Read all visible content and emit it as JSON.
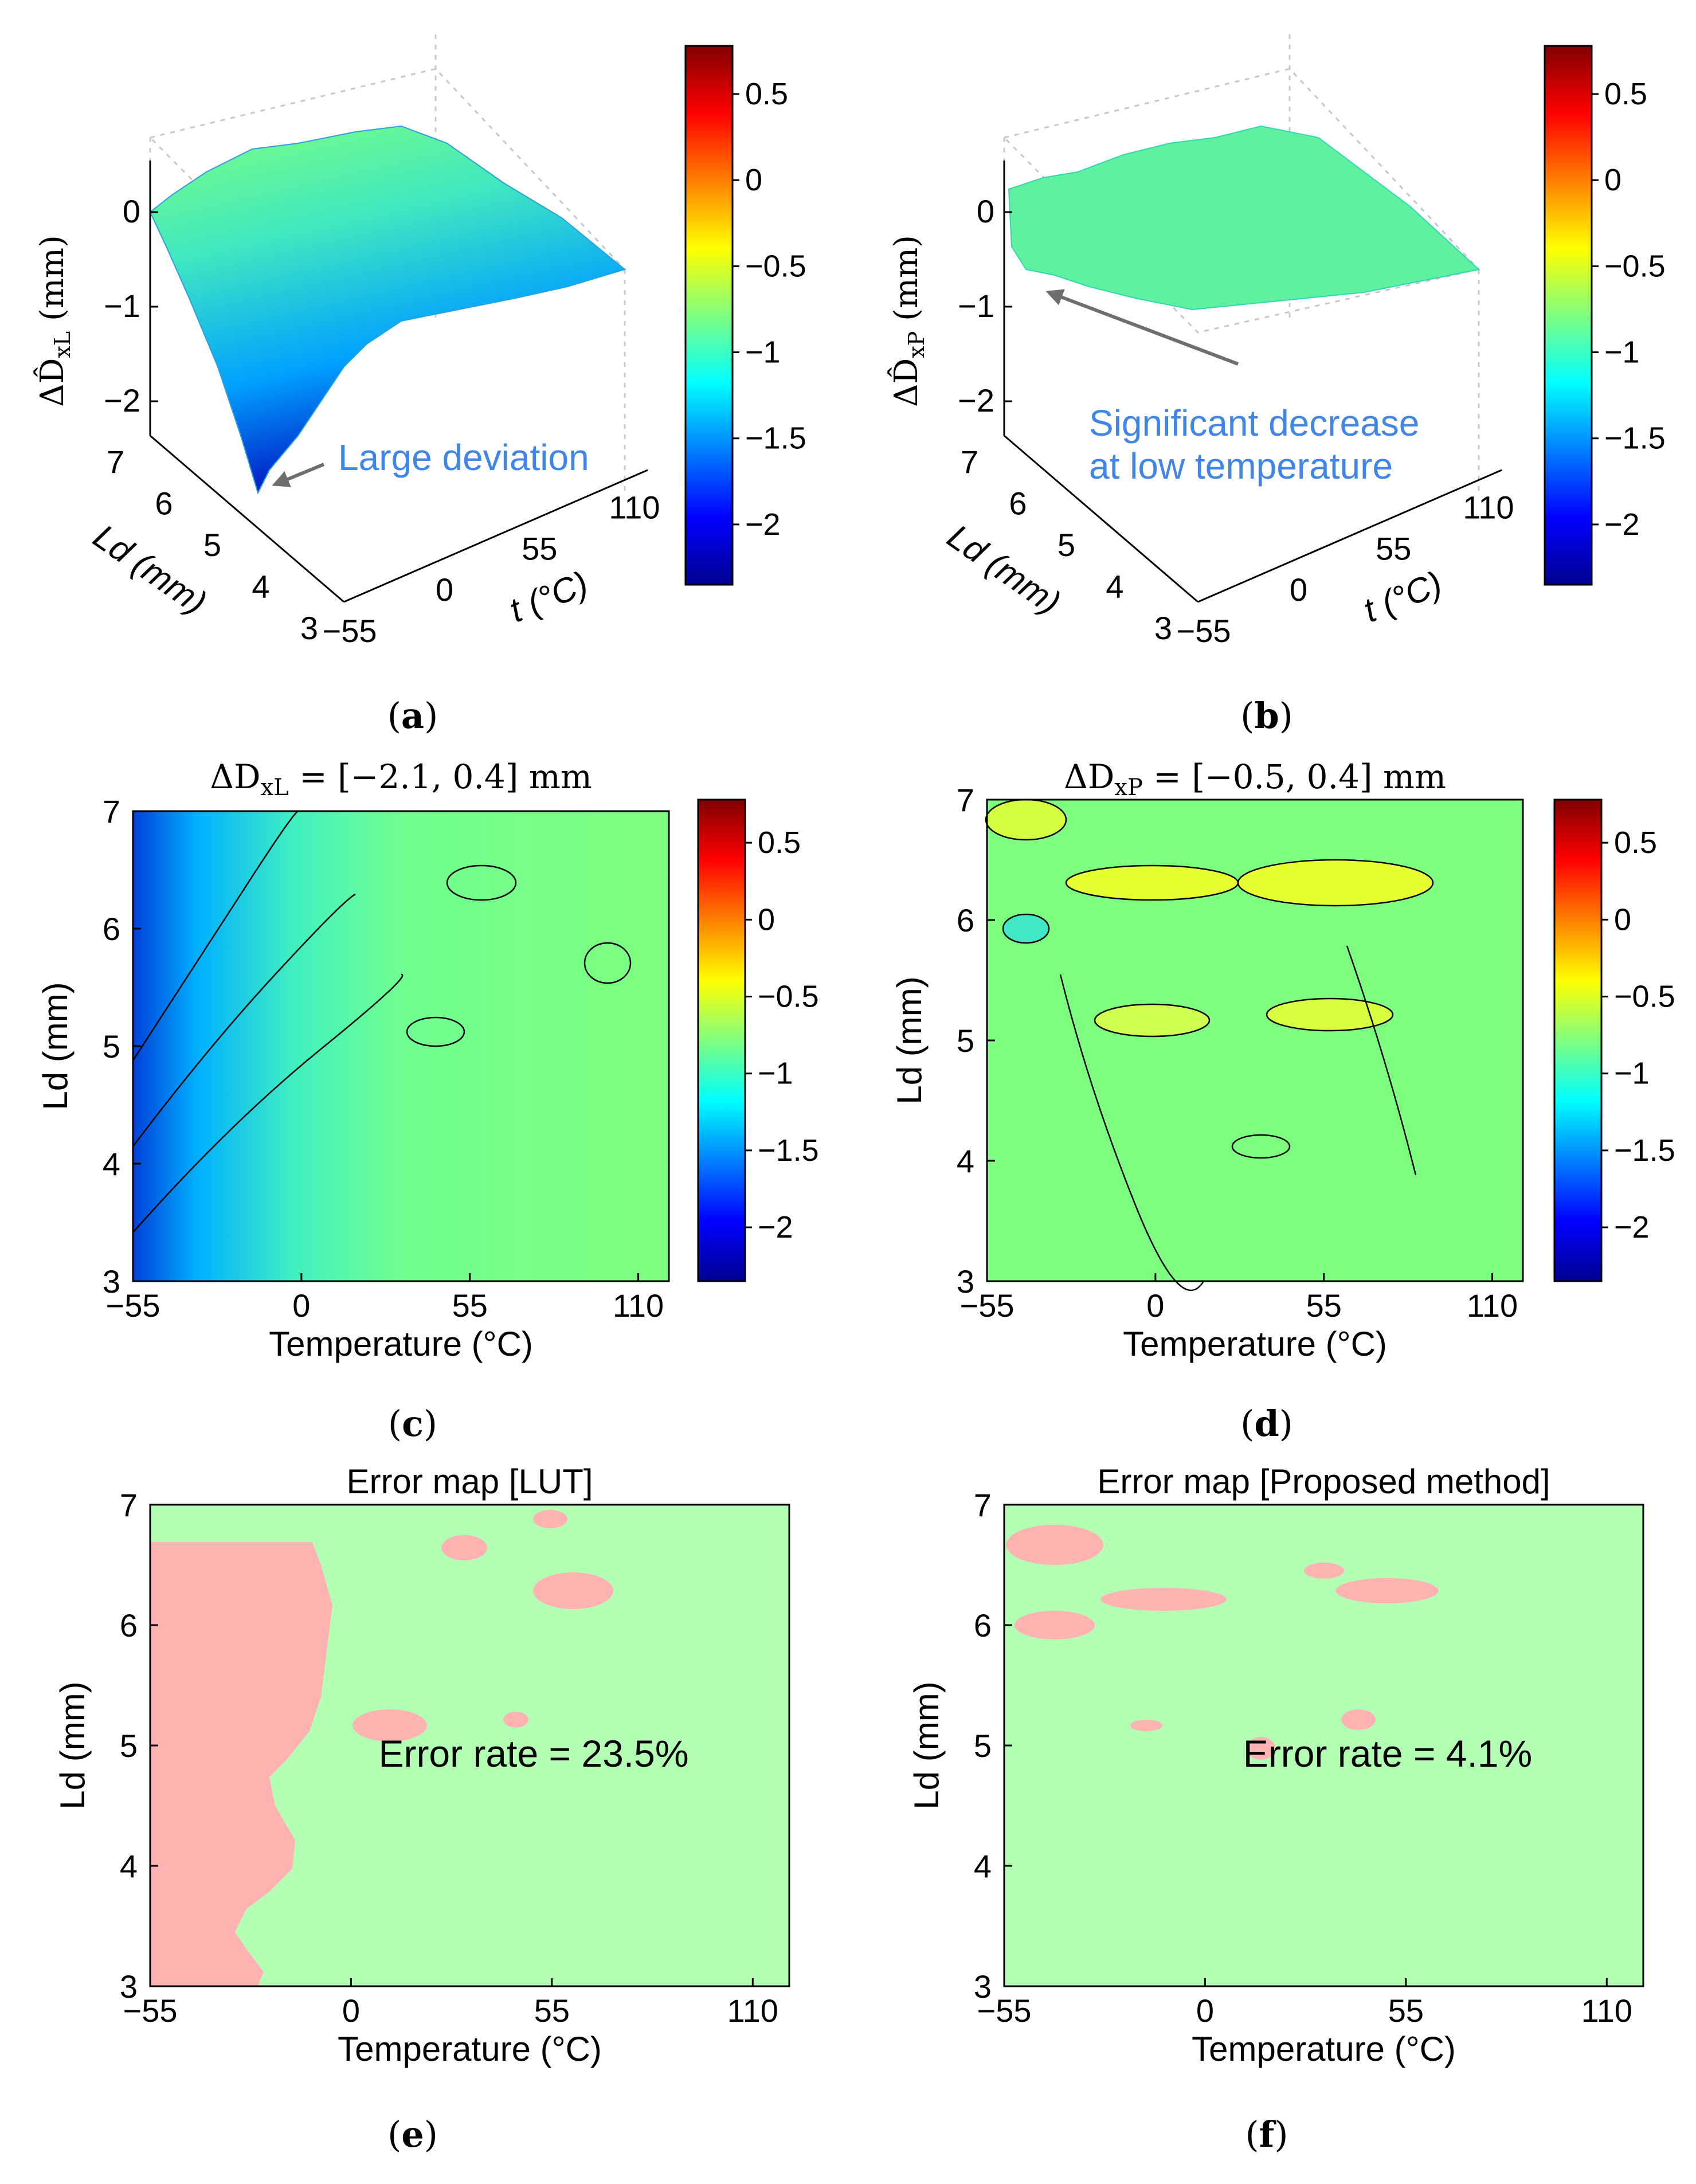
{
  "figure": {
    "colors": {
      "background": "#ffffff",
      "annotation_text": "#3f86e8",
      "arrow": "#6e6e6e",
      "error_fill": "#ffb3b3",
      "correct_fill": "#b3ffb3",
      "contour_line": "#000000"
    },
    "colorbar": {
      "ticks": [
        "0.5",
        "0",
        "−0.5",
        "−1",
        "−1.5",
        "−2"
      ],
      "tick_values": [
        0.5,
        0,
        -0.5,
        -1,
        -1.5,
        -2
      ],
      "range": [
        -2.35,
        0.78
      ],
      "colormap": "jet"
    }
  },
  "chart_data": [
    {
      "panel": "a",
      "caption": "(a)",
      "type": "surface3d",
      "zlabel": "ΔD̂xL (mm)",
      "zlabel_main": "ΔD̂",
      "zlabel_sub": "xL",
      "zlabel_unit": "(mm)",
      "ylabel": "Ld (mm)",
      "xlabel": "t (°C)",
      "x_ticks": [
        "−55",
        "0",
        "55",
        "110"
      ],
      "y_ticks": [
        "3",
        "4",
        "5",
        "6",
        "7"
      ],
      "z_ticks": [
        "0",
        "−1",
        "−2"
      ],
      "xlim": [
        -55,
        120
      ],
      "ylim": [
        3,
        7
      ],
      "zlim": [
        -2.35,
        0.78
      ],
      "annotation": "Large deviation"
    },
    {
      "panel": "b",
      "caption": "(b)",
      "type": "surface3d",
      "zlabel": "ΔD̂xP (mm)",
      "zlabel_main": "ΔD̂",
      "zlabel_sub": "xP",
      "zlabel_unit": "(mm)",
      "ylabel": "Ld (mm)",
      "xlabel": "t (°C)",
      "x_ticks": [
        "−55",
        "0",
        "55",
        "110"
      ],
      "y_ticks": [
        "3",
        "4",
        "5",
        "6",
        "7"
      ],
      "z_ticks": [
        "0",
        "−1",
        "−2"
      ],
      "xlim": [
        -55,
        120
      ],
      "ylim": [
        3,
        7
      ],
      "zlim": [
        -2.35,
        0.78
      ],
      "annotation_line1": "Significant decrease",
      "annotation_line2": "at low temperature"
    },
    {
      "panel": "c",
      "caption": "(c)",
      "type": "heatmap",
      "title": "ΔDxL = [−2.1, 0.4] mm",
      "title_main": "ΔD",
      "title_sub": "xL",
      "title_range": "= [−2.1, 0.4] mm",
      "range_values": [
        -2.1,
        0.4
      ],
      "xlabel": "Temperature (°C)",
      "ylabel": "Ld (mm)",
      "x_ticks": [
        "−55",
        "0",
        "55",
        "110"
      ],
      "x_tick_values": [
        -55,
        0,
        55,
        110
      ],
      "y_ticks": [
        "3",
        "4",
        "5",
        "6",
        "7"
      ],
      "y_tick_values": [
        3,
        4,
        5,
        6,
        7
      ],
      "xlim": [
        -55,
        120
      ],
      "ylim": [
        3,
        7
      ]
    },
    {
      "panel": "d",
      "caption": "(d)",
      "type": "heatmap",
      "title": "ΔDxP = [−0.5, 0.4] mm",
      "title_main": "ΔD",
      "title_sub": "xP",
      "title_range": "= [−0.5, 0.4] mm",
      "range_values": [
        -0.5,
        0.4
      ],
      "xlabel": "Temperature (°C)",
      "ylabel": "Ld (mm)",
      "x_ticks": [
        "−55",
        "0",
        "55",
        "110"
      ],
      "x_tick_values": [
        -55,
        0,
        55,
        110
      ],
      "y_ticks": [
        "3",
        "4",
        "5",
        "6",
        "7"
      ],
      "y_tick_values": [
        3,
        4,
        5,
        6,
        7
      ],
      "xlim": [
        -55,
        120
      ],
      "ylim": [
        3,
        7
      ]
    },
    {
      "panel": "e",
      "caption": "(e)",
      "type": "heatmap",
      "title": "Error map [LUT]",
      "xlabel": "Temperature (°C)",
      "ylabel": "Ld (mm)",
      "x_ticks": [
        "−55",
        "0",
        "55",
        "110"
      ],
      "x_tick_values": [
        -55,
        0,
        55,
        110
      ],
      "y_ticks": [
        "3",
        "4",
        "5",
        "6",
        "7"
      ],
      "y_tick_values": [
        3,
        4,
        5,
        6,
        7
      ],
      "xlim": [
        -55,
        120
      ],
      "ylim": [
        3,
        7
      ],
      "annotation": "Error rate = 23.5%",
      "error_rate_percent": 23.5
    },
    {
      "panel": "f",
      "caption": "(f)",
      "type": "heatmap",
      "title": "Error map [Proposed method]",
      "xlabel": "Temperature (°C)",
      "ylabel": "Ld (mm)",
      "x_ticks": [
        "−55",
        "0",
        "55",
        "110"
      ],
      "x_tick_values": [
        -55,
        0,
        55,
        110
      ],
      "y_ticks": [
        "3",
        "4",
        "5",
        "6",
        "7"
      ],
      "y_tick_values": [
        3,
        4,
        5,
        6,
        7
      ],
      "xlim": [
        -55,
        120
      ],
      "ylim": [
        3,
        7
      ],
      "annotation": "Error rate = 4.1%",
      "error_rate_percent": 4.1
    }
  ]
}
